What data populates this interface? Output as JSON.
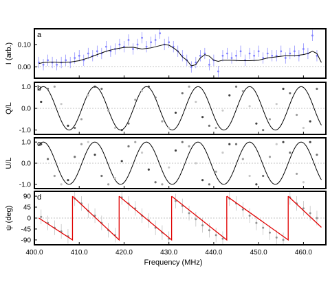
{
  "figure": {
    "xlabel": "Frequency (MHz)",
    "xlim": [
      400,
      465
    ],
    "xticks": [
      400,
      410,
      420,
      430,
      440,
      450,
      460
    ],
    "xtick_labels": [
      "400.0",
      "410.0",
      "420.0",
      "430.0",
      "440.0",
      "450.0",
      "460.0"
    ]
  },
  "chart_data": [
    {
      "type": "scatter",
      "panel_label": "a",
      "title": "",
      "xlabel": "",
      "ylabel": "I (arb.)",
      "ylim": [
        -0.05,
        0.17
      ],
      "yticks": [
        0.0,
        0.1
      ],
      "ytick_labels": [
        "0.00",
        "0.10"
      ],
      "reference_line": 0,
      "colors": {
        "points": "#8080ff",
        "model": "#000000"
      },
      "series": [
        {
          "kind": "points",
          "x": [
            401,
            402,
            403,
            404,
            405,
            406,
            407,
            408,
            409,
            410,
            411,
            412,
            413,
            414,
            415,
            416,
            417,
            418,
            419,
            420,
            421,
            422,
            423,
            424,
            425,
            426,
            427,
            428,
            429,
            430,
            431,
            432,
            433,
            434,
            435,
            436,
            437,
            438,
            439,
            440,
            441,
            442,
            443,
            444,
            445,
            446,
            447,
            448,
            449,
            450,
            451,
            452,
            453,
            454,
            455,
            456,
            457,
            458,
            459,
            460,
            461,
            462,
            463
          ],
          "y": [
            0.02,
            0.01,
            0.03,
            0.02,
            0.01,
            0.02,
            0.03,
            0.02,
            0.04,
            0.05,
            0.03,
            0.06,
            0.05,
            0.07,
            0.06,
            0.09,
            0.07,
            0.08,
            0.1,
            0.09,
            0.12,
            0.08,
            0.1,
            0.13,
            0.09,
            0.11,
            0.12,
            0.15,
            0.1,
            0.11,
            0.09,
            0.07,
            0.05,
            0.03,
            0.0,
            0.02,
            0.05,
            0.06,
            0.01,
            0.03,
            -0.02,
            0.05,
            0.06,
            0.04,
            0.05,
            0.07,
            0.03,
            0.06,
            0.05,
            0.07,
            0.04,
            0.06,
            0.05,
            0.05,
            0.07,
            0.04,
            0.06,
            0.07,
            0.05,
            0.08,
            0.06,
            0.14,
            0.05
          ],
          "yerr": 0.025
        },
        {
          "kind": "line",
          "x": [
            401,
            402,
            404,
            406,
            408,
            410,
            412,
            414,
            416,
            418,
            420,
            422,
            424,
            426,
            428,
            429,
            430,
            431,
            432,
            433,
            434,
            435,
            436,
            437,
            438,
            439,
            440,
            441,
            442,
            444,
            446,
            448,
            450,
            452,
            454,
            456,
            458,
            460,
            461,
            462,
            463,
            464
          ],
          "y": [
            0.015,
            0.02,
            0.022,
            0.02,
            0.022,
            0.028,
            0.04,
            0.055,
            0.07,
            0.08,
            0.087,
            0.088,
            0.08,
            0.085,
            0.095,
            0.1,
            0.097,
            0.085,
            0.07,
            0.045,
            0.03,
            0.005,
            0.01,
            0.04,
            0.055,
            0.048,
            0.03,
            0.025,
            0.03,
            0.03,
            0.028,
            0.028,
            0.03,
            0.04,
            0.045,
            0.05,
            0.05,
            0.055,
            0.06,
            0.07,
            0.06,
            0.02
          ]
        }
      ]
    },
    {
      "type": "scatter",
      "panel_label": "b",
      "title": "",
      "xlabel": "",
      "ylabel": "Q/L",
      "ylim": [
        -1.2,
        1.2
      ],
      "yticks": [
        -1.0,
        0.0,
        1.0
      ],
      "ytick_labels": [
        "-1.0",
        "0.0",
        "1.0"
      ],
      "reference_line": 0,
      "model": {
        "kind": "line",
        "function": "cos",
        "period_mhz": 11.5,
        "phase_mhz": 413.5,
        "x_range": [
          401,
          464
        ]
      },
      "colors": {
        "model": "#000000",
        "points": "#707070"
      },
      "series": [
        {
          "kind": "points",
          "x": [
            401.5,
            403,
            404.5,
            406,
            407.5,
            409,
            410.5,
            412,
            413.5,
            415,
            416.5,
            418,
            419.5,
            421,
            422.5,
            424,
            425.5,
            427,
            428.5,
            430,
            431.5,
            433,
            434.5,
            436,
            437.5,
            439,
            440.5,
            442,
            443.5,
            445,
            446.5,
            448,
            449.5,
            451,
            452.5,
            454,
            455.5,
            457,
            458.5,
            460,
            461.5,
            463
          ],
          "y": [
            0.3,
            0.9,
            1.0,
            0.2,
            -0.8,
            -0.9,
            -0.5,
            0.6,
            1.0,
            0.9,
            -0.1,
            -0.9,
            -1.0,
            -0.7,
            0.4,
            0.8,
            1.0,
            0.5,
            -0.6,
            -0.9,
            -0.2,
            0.7,
            1.0,
            0.3,
            -0.4,
            -0.8,
            -0.9,
            -0.1,
            0.6,
            1.0,
            0.8,
            0.1,
            -0.7,
            -1.0,
            -0.5,
            0.2,
            0.9,
            0.7,
            -0.3,
            -0.9,
            -0.6,
            0.9
          ]
        }
      ]
    },
    {
      "type": "scatter",
      "panel_label": "c",
      "title": "",
      "xlabel": "",
      "ylabel": "U/L",
      "ylim": [
        -1.2,
        1.2
      ],
      "yticks": [
        -1.0,
        0.0,
        1.0
      ],
      "ytick_labels": [
        "-1.0",
        "0.0",
        "1.0"
      ],
      "reference_line": 0,
      "model": {
        "kind": "line",
        "function": "sin",
        "period_mhz": 11.5,
        "phase_mhz": 410.6,
        "x_range": [
          401,
          464
        ]
      },
      "colors": {
        "model": "#000000",
        "points": "#707070"
      },
      "series": [
        {
          "kind": "points",
          "x": [
            401.5,
            403,
            404.5,
            406,
            407.5,
            409,
            410.5,
            412,
            413.5,
            415,
            416.5,
            418,
            419.5,
            421,
            422.5,
            424,
            425.5,
            427,
            428.5,
            430,
            431.5,
            433,
            434.5,
            436,
            437.5,
            439,
            440.5,
            442,
            443.5,
            445,
            446.5,
            448,
            449.5,
            451,
            452.5,
            454,
            455.5,
            457,
            458.5,
            460,
            461.5,
            463
          ],
          "y": [
            0.9,
            0.2,
            -0.6,
            -1.0,
            -0.8,
            0.3,
            0.9,
            1.0,
            0.4,
            -0.6,
            -1.0,
            -0.7,
            0.1,
            0.8,
            1.0,
            0.5,
            -0.3,
            -0.9,
            -1.0,
            -0.2,
            0.6,
            1.0,
            0.8,
            0.0,
            -0.8,
            -1.0,
            -0.4,
            0.5,
            0.9,
            0.9,
            0.2,
            -0.6,
            -1.0,
            -0.6,
            0.3,
            0.9,
            1.0,
            0.5,
            -0.5,
            -0.9,
            1.0,
            0.4
          ]
        }
      ]
    },
    {
      "type": "scatter",
      "panel_label": "d",
      "title": "",
      "xlabel": "",
      "ylabel": "ψ (deg)",
      "ylim": [
        -110,
        110
      ],
      "yticks": [
        -90,
        -45,
        0,
        45,
        90
      ],
      "ytick_labels": [
        "-90",
        "-45",
        "0",
        "45",
        "90"
      ],
      "reference_line": 0,
      "model": {
        "kind": "sawtooth",
        "color_name": "red",
        "x_range": [
          401,
          464
        ],
        "wrap_points_mhz": [
          408.5,
          418.9,
          430.6,
          442.9,
          456.6
        ],
        "value_at_start_deg": 0
      },
      "colors": {
        "model": "#e00000",
        "points": "#909090"
      },
      "series": [
        {
          "kind": "points",
          "x": [
            401.5,
            403,
            404.5,
            406,
            407.5,
            409,
            410.5,
            412,
            413.5,
            415,
            416.5,
            418,
            419.5,
            421,
            422.5,
            424,
            425.5,
            427,
            428.5,
            430,
            431.5,
            433,
            434.5,
            436,
            437.5,
            439,
            440.5,
            442,
            443.5,
            445,
            446.5,
            448,
            449.5,
            451,
            452.5,
            454,
            455.5,
            457,
            458.5,
            460,
            461.5,
            463
          ],
          "y": [
            5,
            -20,
            -40,
            -55,
            -75,
            80,
            60,
            30,
            10,
            -20,
            -50,
            -70,
            85,
            60,
            40,
            10,
            -10,
            -40,
            -60,
            -85,
            70,
            50,
            20,
            -5,
            -30,
            -50,
            -70,
            -85,
            80,
            60,
            35,
            10,
            -20,
            -40,
            -60,
            -80,
            -90,
            85,
            60,
            40,
            20,
            0
          ],
          "yerr": 30
        }
      ]
    }
  ]
}
